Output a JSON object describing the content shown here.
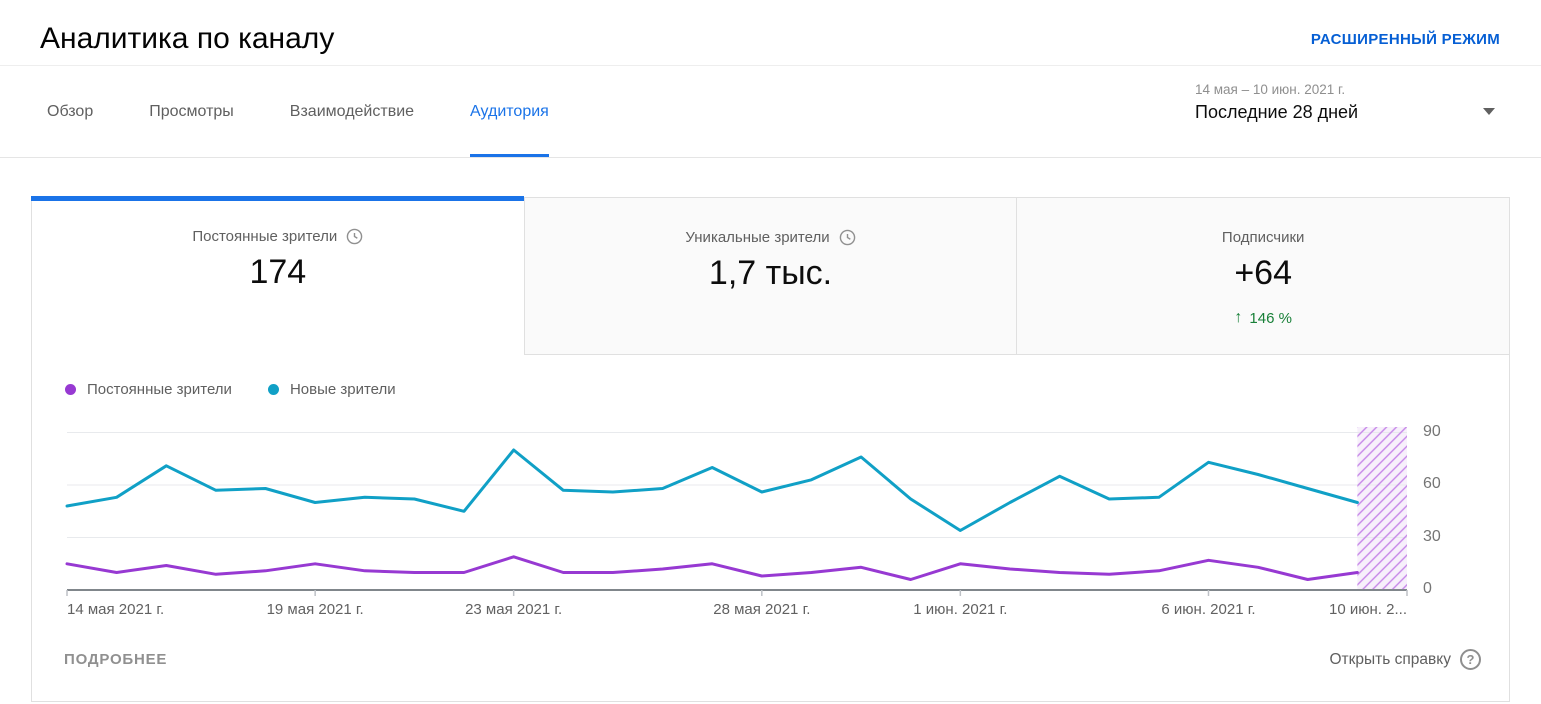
{
  "header": {
    "title": "Аналитика по каналу",
    "advanced_mode_label": "РАСШИРЕННЫЙ РЕЖИМ"
  },
  "tabs": [
    {
      "label": "Обзор",
      "active": false
    },
    {
      "label": "Просмотры",
      "active": false
    },
    {
      "label": "Взаимодействие",
      "active": false
    },
    {
      "label": "Аудитория",
      "active": true
    }
  ],
  "date_picker": {
    "range": "14 мая – 10 июн. 2021 г.",
    "preset": "Последние 28 дней"
  },
  "summary_cards": [
    {
      "title": "Постоянные зрители",
      "value": "174",
      "clock_icon": true,
      "active": true
    },
    {
      "title": "Уникальные зрители",
      "value": "1,7 тыс.",
      "clock_icon": true,
      "active": false
    },
    {
      "title": "Подписчики",
      "value": "+64",
      "clock_icon": false,
      "active": false,
      "delta": "146 %",
      "delta_direction": "up"
    }
  ],
  "chart_data": {
    "type": "line",
    "title": "",
    "xlabel": "",
    "ylabel": "",
    "ylim": [
      0,
      90
    ],
    "y_ticks": [
      0,
      30,
      60,
      90
    ],
    "grid": true,
    "legend_position": "top-left",
    "n_intervals": 27,
    "x_tick_labels": [
      "14 мая 2021 г.",
      "19 мая 2021 г.",
      "23 мая 2021 г.",
      "28 мая 2021 г.",
      "1 июн. 2021 г.",
      "6 июн. 2021 г.",
      "10 июн. 2..."
    ],
    "x_tick_positions": [
      0,
      5,
      9,
      14,
      18,
      23,
      27
    ],
    "series": [
      {
        "name": "Постоянные зрители",
        "color": "#9739d2",
        "values": [
          15,
          10,
          14,
          9,
          11,
          15,
          11,
          10,
          10,
          19,
          10,
          10,
          12,
          15,
          8,
          10,
          13,
          6,
          15,
          12,
          10,
          9,
          11,
          17,
          13,
          6,
          10
        ]
      },
      {
        "name": "Новые зрители",
        "color": "#10a0c6",
        "values": [
          48,
          53,
          71,
          57,
          58,
          50,
          53,
          52,
          45,
          80,
          57,
          56,
          58,
          70,
          56,
          63,
          76,
          52,
          34,
          50,
          65,
          52,
          53,
          73,
          66,
          58,
          50
        ]
      }
    ],
    "projection_band": {
      "from_index": 26,
      "to_index": 27,
      "fill": "#f7f0fb",
      "stripe": "#c585e8"
    }
  },
  "footer": {
    "details_label": "ПОДРОБНЕЕ",
    "help_label": "Открыть справку"
  },
  "colors": {
    "accent_blue": "#1a73e8",
    "link_blue": "#065fd4",
    "positive_green": "#188038",
    "purple_series": "#9739d2",
    "teal_series": "#10a0c6"
  }
}
